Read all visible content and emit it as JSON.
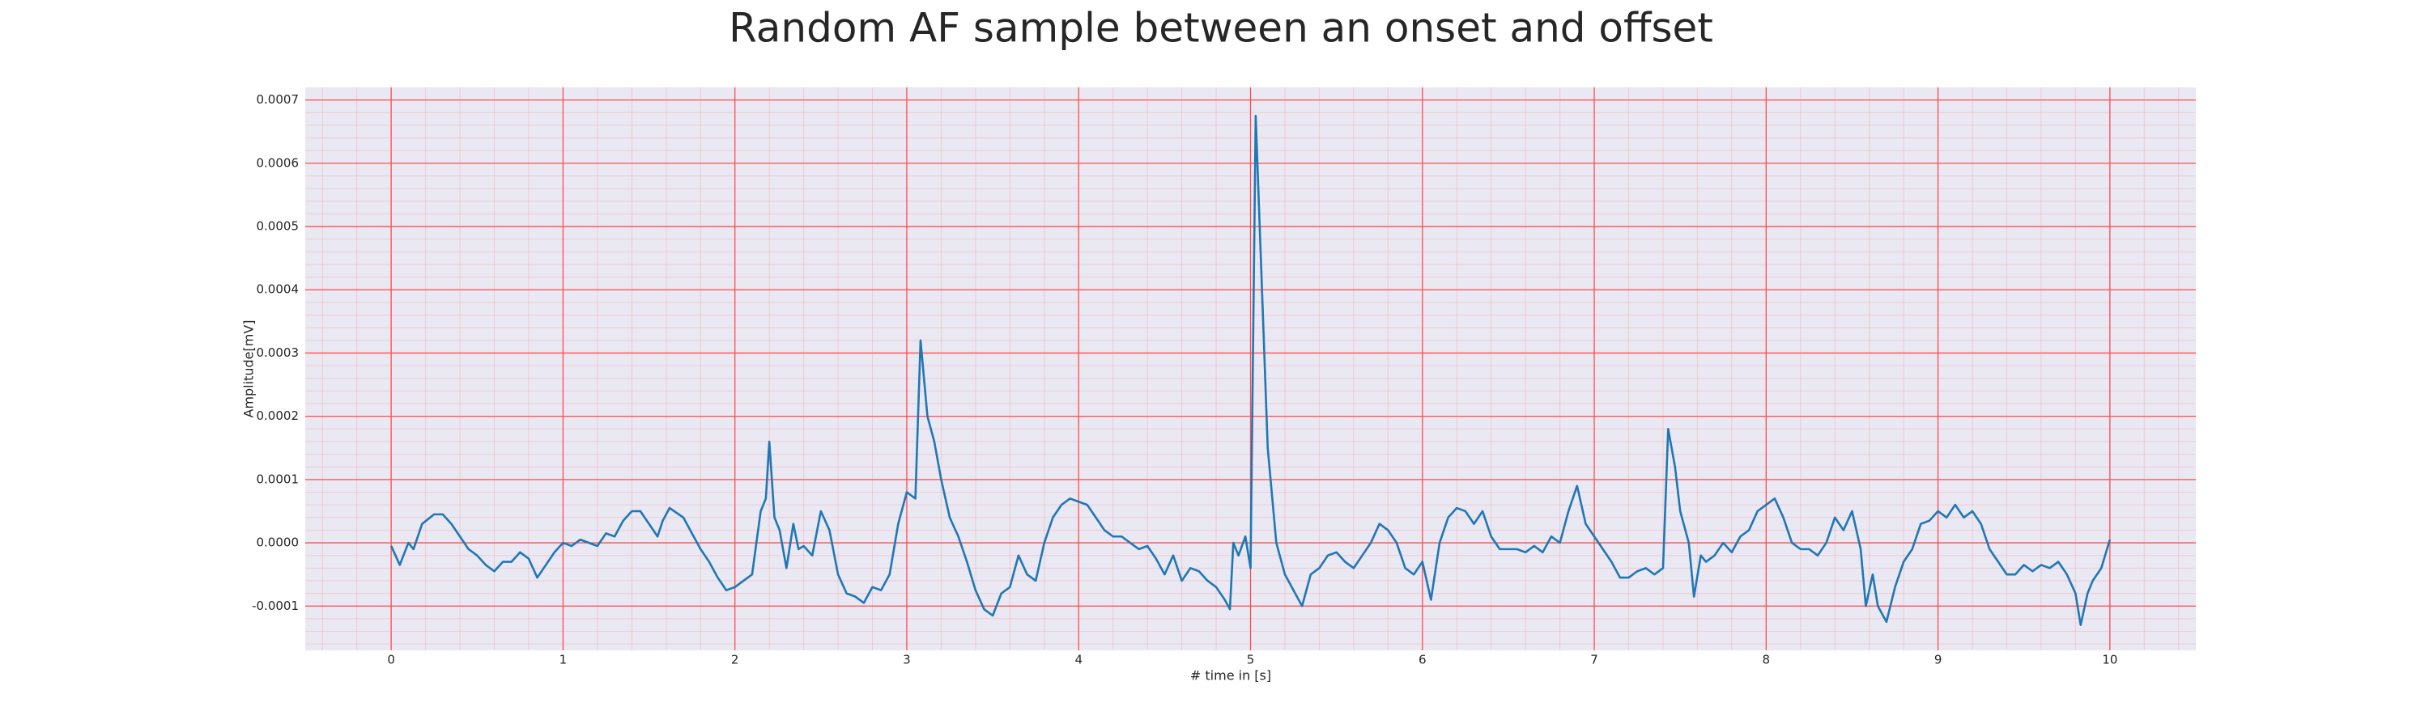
{
  "chart_data": {
    "type": "line",
    "title": "Random AF sample between an onset and offset",
    "x_label": "# time in [s]",
    "y_label": "Amplitude[mV]",
    "color": "#1f77b4",
    "background": "#eae8f2",
    "grid": true,
    "grid_color": "#ff4d4d",
    "minor_grid": true,
    "xlim": [
      -0.5,
      10.5
    ],
    "ylim": [
      -0.00017,
      0.00072
    ],
    "xticks": [
      0,
      1,
      2,
      3,
      4,
      5,
      6,
      7,
      8,
      9,
      10
    ],
    "yticks": [
      -0.0001,
      {
        "value": 0,
        "label": "0.0000"
      },
      0.0001,
      0.0002,
      0.0003,
      0.0004,
      0.0005,
      0.0006,
      0.0007
    ],
    "x": [
      0,
      0.05,
      0.1,
      0.13,
      0.18,
      0.25,
      0.3,
      0.35,
      0.4,
      0.45,
      0.5,
      0.55,
      0.6,
      0.65,
      0.7,
      0.75,
      0.8,
      0.85,
      0.9,
      0.95,
      1.0,
      1.05,
      1.1,
      1.2,
      1.25,
      1.3,
      1.35,
      1.4,
      1.45,
      1.5,
      1.55,
      1.58,
      1.62,
      1.7,
      1.75,
      1.8,
      1.85,
      1.9,
      1.95,
      2.0,
      2.05,
      2.1,
      2.15,
      2.18,
      2.2,
      2.23,
      2.26,
      2.3,
      2.34,
      2.37,
      2.4,
      2.45,
      2.5,
      2.55,
      2.6,
      2.65,
      2.7,
      2.75,
      2.8,
      2.85,
      2.9,
      2.95,
      3.0,
      3.05,
      3.08,
      3.12,
      3.16,
      3.2,
      3.25,
      3.3,
      3.35,
      3.4,
      3.45,
      3.5,
      3.55,
      3.6,
      3.65,
      3.7,
      3.75,
      3.8,
      3.85,
      3.9,
      3.95,
      4.0,
      4.05,
      4.1,
      4.15,
      4.2,
      4.25,
      4.3,
      4.35,
      4.4,
      4.45,
      4.5,
      4.55,
      4.6,
      4.65,
      4.7,
      4.75,
      4.8,
      4.85,
      4.88,
      4.9,
      4.93,
      4.97,
      5.0,
      5.03,
      5.06,
      5.1,
      5.15,
      5.2,
      5.25,
      5.3,
      5.35,
      5.4,
      5.45,
      5.5,
      5.55,
      5.6,
      5.65,
      5.7,
      5.75,
      5.8,
      5.85,
      5.9,
      5.95,
      6.0,
      6.05,
      6.1,
      6.15,
      6.2,
      6.25,
      6.3,
      6.35,
      6.4,
      6.45,
      6.5,
      6.55,
      6.6,
      6.65,
      6.7,
      6.75,
      6.8,
      6.85,
      6.9,
      6.95,
      7.0,
      7.05,
      7.1,
      7.15,
      7.2,
      7.25,
      7.3,
      7.35,
      7.4,
      7.43,
      7.47,
      7.5,
      7.55,
      7.58,
      7.62,
      7.65,
      7.7,
      7.75,
      7.8,
      7.85,
      7.9,
      7.95,
      8.0,
      8.05,
      8.1,
      8.15,
      8.2,
      8.25,
      8.3,
      8.35,
      8.4,
      8.45,
      8.5,
      8.55,
      8.58,
      8.62,
      8.65,
      8.7,
      8.75,
      8.8,
      8.85,
      8.9,
      8.95,
      9.0,
      9.05,
      9.1,
      9.15,
      9.2,
      9.25,
      9.3,
      9.35,
      9.4,
      9.45,
      9.5,
      9.55,
      9.6,
      9.65,
      9.7,
      9.75,
      9.8,
      9.83,
      9.87,
      9.9,
      9.95,
      10.0
    ],
    "values": [
      -5e-06,
      -3.5e-05,
      0,
      -1e-05,
      3e-05,
      4.5e-05,
      4.5e-05,
      3e-05,
      1e-05,
      -1e-05,
      -2e-05,
      -3.5e-05,
      -4.5e-05,
      -3e-05,
      -3e-05,
      -1.5e-05,
      -2.5e-05,
      -5.5e-05,
      -3.5e-05,
      -1.5e-05,
      0,
      -5e-06,
      5e-06,
      -5e-06,
      1.5e-05,
      1e-05,
      3.5e-05,
      5e-05,
      5e-05,
      3e-05,
      1e-05,
      3.5e-05,
      5.5e-05,
      4e-05,
      1.5e-05,
      -1e-05,
      -3e-05,
      -5.5e-05,
      -7.5e-05,
      -7e-05,
      -6e-05,
      -5e-05,
      5e-05,
      7e-05,
      0.00016,
      4e-05,
      2e-05,
      -4e-05,
      3e-05,
      -1e-05,
      -5e-06,
      -2e-05,
      5e-05,
      2e-05,
      -5e-05,
      -8e-05,
      -8.5e-05,
      -9.5e-05,
      -7e-05,
      -7.5e-05,
      -5e-05,
      3e-05,
      8e-05,
      7e-05,
      0.00032,
      0.0002,
      0.00016,
      0.0001,
      4e-05,
      1e-05,
      -3e-05,
      -7.5e-05,
      -0.000105,
      -0.000115,
      -8e-05,
      -7e-05,
      -2e-05,
      -5e-05,
      -6e-05,
      0,
      4e-05,
      6e-05,
      7e-05,
      6.5e-05,
      6e-05,
      4e-05,
      2e-05,
      1e-05,
      1e-05,
      0,
      -1e-05,
      -5e-06,
      -2.5e-05,
      -5e-05,
      -2e-05,
      -6e-05,
      -4e-05,
      -4.5e-05,
      -6e-05,
      -7e-05,
      -9e-05,
      -0.000105,
      0,
      -2e-05,
      1e-05,
      -4e-05,
      0.000675,
      0.00045,
      0.00015,
      0,
      -5e-05,
      -7.5e-05,
      -0.0001,
      -5e-05,
      -4e-05,
      -2e-05,
      -1.5e-05,
      -3e-05,
      -4e-05,
      -2e-05,
      0,
      3e-05,
      2e-05,
      0,
      -4e-05,
      -5e-05,
      -3e-05,
      -9e-05,
      0,
      4e-05,
      5.5e-05,
      5e-05,
      3e-05,
      5e-05,
      1e-05,
      -1e-05,
      -1e-05,
      -1e-05,
      -1.5e-05,
      -5e-06,
      -1.5e-05,
      1e-05,
      0,
      5e-05,
      9e-05,
      3e-05,
      1e-05,
      -1e-05,
      -3e-05,
      -5.5e-05,
      -5.5e-05,
      -4.5e-05,
      -4e-05,
      -5e-05,
      -4e-05,
      0.00018,
      0.00012,
      5e-05,
      0,
      -8.5e-05,
      -2e-05,
      -3e-05,
      -2e-05,
      0,
      -1.5e-05,
      1e-05,
      2e-05,
      5e-05,
      6e-05,
      7e-05,
      4e-05,
      0,
      -1e-05,
      -1e-05,
      -2e-05,
      0,
      4e-05,
      2e-05,
      5e-05,
      -1e-05,
      -0.0001,
      -5e-05,
      -0.0001,
      -0.000125,
      -7e-05,
      -3e-05,
      -1e-05,
      3e-05,
      3.5e-05,
      5e-05,
      4e-05,
      6e-05,
      4e-05,
      5e-05,
      3e-05,
      -1e-05,
      -3e-05,
      -5e-05,
      -5e-05,
      -3.5e-05,
      -4.5e-05,
      -3.5e-05,
      -4e-05,
      -3e-05,
      -5e-05,
      -8e-05,
      -0.00013,
      -8e-05,
      -6e-05,
      -4e-05,
      5e-06
    ]
  }
}
